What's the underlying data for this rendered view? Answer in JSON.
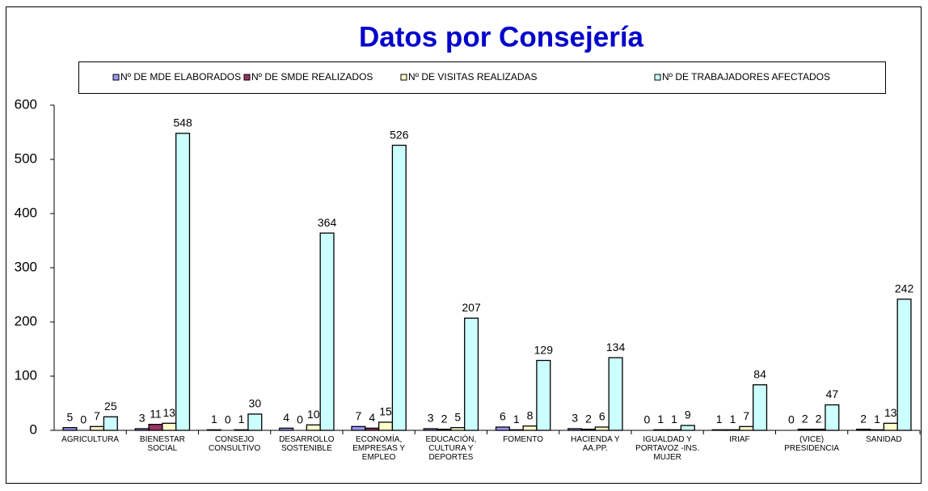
{
  "chart_data": {
    "type": "bar",
    "title": "Datos por Consejería",
    "categories": [
      "AGRICULTURA",
      "BIENESTAR SOCIAL",
      "CONSEJO CONSULTIVO",
      "DESARROLLO SOSTENIBLE",
      "ECONOMÍA, EMPRESAS Y EMPLEO",
      "EDUCACIÓN, CULTURA Y DEPORTES",
      "FOMENTO",
      "HACIENDA Y AA.PP.",
      "IGUALDAD Y PORTAVOZ -INS. MUJER",
      "IRIAF",
      "(VICE) PRESIDENCIA",
      "SANIDAD"
    ],
    "series": [
      {
        "name": "Nº DE MDE ELABORADOS",
        "color": "#9999ff",
        "values": [
          5,
          3,
          1,
          4,
          7,
          3,
          6,
          3,
          0,
          1,
          0,
          2
        ]
      },
      {
        "name": "Nº DE SMDE REALIZADOS",
        "color": "#993366",
        "values": [
          0,
          11,
          0,
          0,
          4,
          2,
          1,
          2,
          1,
          1,
          2,
          1
        ]
      },
      {
        "name": "Nº DE VISITAS REALIZADAS",
        "color": "#ffffcc",
        "values": [
          7,
          13,
          1,
          10,
          15,
          5,
          8,
          6,
          1,
          7,
          2,
          13
        ]
      },
      {
        "name": "Nº DE TRABAJADORES AFECTADOS",
        "color": "#ccffff",
        "values": [
          25,
          548,
          30,
          364,
          526,
          207,
          129,
          134,
          9,
          84,
          47,
          242
        ]
      }
    ],
    "ylim": [
      0,
      600
    ],
    "yticks": [
      0,
      100,
      200,
      300,
      400,
      500,
      600
    ],
    "grid": false
  }
}
